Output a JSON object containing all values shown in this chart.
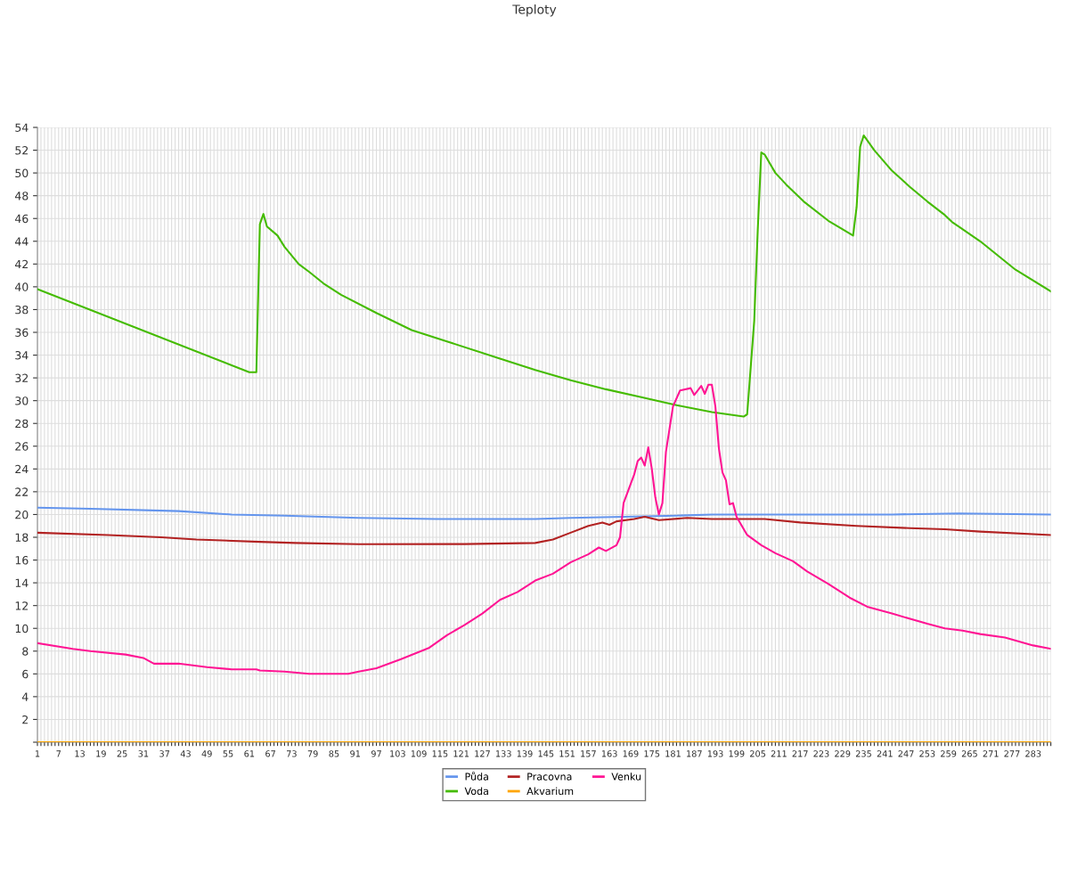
{
  "chart_data": {
    "type": "line",
    "title": "Teploty",
    "xlim": [
      1,
      288
    ],
    "ylim": [
      0,
      54
    ],
    "yticks": [
      {
        "value": 0,
        "label": null
      },
      2,
      4,
      6,
      8,
      10,
      12,
      14,
      16,
      18,
      20,
      22,
      24,
      26,
      28,
      30,
      32,
      34,
      36,
      38,
      40,
      42,
      44,
      46,
      48,
      50,
      52,
      54
    ],
    "xticks": [
      1,
      {
        "value": 2,
        "label": null
      },
      {
        "value": 3,
        "label": null
      },
      {
        "value": 4,
        "label": null
      },
      {
        "value": 5,
        "label": null
      },
      {
        "value": 6,
        "label": null
      },
      7,
      {
        "value": 8,
        "label": null
      },
      {
        "value": 9,
        "label": null
      },
      {
        "value": 10,
        "label": null
      },
      {
        "value": 11,
        "label": null
      },
      {
        "value": 12,
        "label": null
      },
      13,
      {
        "value": 14,
        "label": null
      },
      {
        "value": 15,
        "label": null
      },
      {
        "value": 16,
        "label": null
      },
      {
        "value": 17,
        "label": null
      },
      {
        "value": 18,
        "label": null
      },
      19,
      {
        "value": 20,
        "label": null
      },
      {
        "value": 21,
        "label": null
      },
      {
        "value": 22,
        "label": null
      },
      {
        "value": 23,
        "label": null
      },
      {
        "value": 24,
        "label": null
      },
      25,
      {
        "value": 26,
        "label": null
      },
      {
        "value": 27,
        "label": null
      },
      {
        "value": 28,
        "label": null
      },
      {
        "value": 29,
        "label": null
      },
      {
        "value": 30,
        "label": null
      },
      31,
      {
        "value": 32,
        "label": null
      },
      {
        "value": 33,
        "label": null
      },
      {
        "value": 34,
        "label": null
      },
      {
        "value": 35,
        "label": null
      },
      {
        "value": 36,
        "label": null
      },
      37,
      {
        "value": 38,
        "label": null
      },
      {
        "value": 39,
        "label": null
      },
      {
        "value": 40,
        "label": null
      },
      {
        "value": 41,
        "label": null
      },
      {
        "value": 42,
        "label": null
      },
      43,
      {
        "value": 44,
        "label": null
      },
      {
        "value": 45,
        "label": null
      },
      {
        "value": 46,
        "label": null
      },
      {
        "value": 47,
        "label": null
      },
      {
        "value": 48,
        "label": null
      },
      49,
      {
        "value": 50,
        "label": null
      },
      {
        "value": 51,
        "label": null
      },
      {
        "value": 52,
        "label": null
      },
      {
        "value": 53,
        "label": null
      },
      {
        "value": 54,
        "label": null
      },
      55,
      {
        "value": 56,
        "label": null
      },
      {
        "value": 57,
        "label": null
      },
      {
        "value": 58,
        "label": null
      },
      {
        "value": 59,
        "label": null
      },
      {
        "value": 60,
        "label": null
      },
      61,
      {
        "value": 62,
        "label": null
      },
      {
        "value": 63,
        "label": null
      },
      {
        "value": 64,
        "label": null
      },
      {
        "value": 65,
        "label": null
      },
      {
        "value": 66,
        "label": null
      },
      67,
      {
        "value": 68,
        "label": null
      },
      {
        "value": 69,
        "label": null
      },
      {
        "value": 70,
        "label": null
      },
      {
        "value": 71,
        "label": null
      },
      {
        "value": 72,
        "label": null
      },
      73,
      {
        "value": 74,
        "label": null
      },
      {
        "value": 75,
        "label": null
      },
      {
        "value": 76,
        "label": null
      },
      {
        "value": 77,
        "label": null
      },
      {
        "value": 78,
        "label": null
      },
      79,
      {
        "value": 80,
        "label": null
      },
      {
        "value": 81,
        "label": null
      },
      {
        "value": 82,
        "label": null
      },
      {
        "value": 83,
        "label": null
      },
      {
        "value": 84,
        "label": null
      },
      85,
      {
        "value": 86,
        "label": null
      },
      {
        "value": 87,
        "label": null
      },
      {
        "value": 88,
        "label": null
      },
      {
        "value": 89,
        "label": null
      },
      {
        "value": 90,
        "label": null
      },
      91,
      {
        "value": 92,
        "label": null
      },
      {
        "value": 93,
        "label": null
      },
      {
        "value": 94,
        "label": null
      },
      {
        "value": 95,
        "label": null
      },
      {
        "value": 96,
        "label": null
      },
      97,
      {
        "value": 98,
        "label": null
      },
      {
        "value": 99,
        "label": null
      },
      {
        "value": 100,
        "label": null
      },
      {
        "value": 101,
        "label": null
      },
      {
        "value": 102,
        "label": null
      },
      103,
      {
        "value": 104,
        "label": null
      },
      {
        "value": 105,
        "label": null
      },
      {
        "value": 106,
        "label": null
      },
      {
        "value": 107,
        "label": null
      },
      {
        "value": 108,
        "label": null
      },
      109,
      {
        "value": 110,
        "label": null
      },
      {
        "value": 111,
        "label": null
      },
      {
        "value": 112,
        "label": null
      },
      {
        "value": 113,
        "label": null
      },
      {
        "value": 114,
        "label": null
      },
      115,
      {
        "value": 116,
        "label": null
      },
      {
        "value": 117,
        "label": null
      },
      {
        "value": 118,
        "label": null
      },
      {
        "value": 119,
        "label": null
      },
      {
        "value": 120,
        "label": null
      },
      121,
      {
        "value": 122,
        "label": null
      },
      {
        "value": 123,
        "label": null
      },
      {
        "value": 124,
        "label": null
      },
      {
        "value": 125,
        "label": null
      },
      {
        "value": 126,
        "label": null
      },
      127,
      {
        "value": 128,
        "label": null
      },
      {
        "value": 129,
        "label": null
      },
      {
        "value": 130,
        "label": null
      },
      {
        "value": 131,
        "label": null
      },
      {
        "value": 132,
        "label": null
      },
      133,
      {
        "value": 134,
        "label": null
      },
      {
        "value": 135,
        "label": null
      },
      {
        "value": 136,
        "label": null
      },
      {
        "value": 137,
        "label": null
      },
      {
        "value": 138,
        "label": null
      },
      139,
      {
        "value": 140,
        "label": null
      },
      {
        "value": 141,
        "label": null
      },
      {
        "value": 142,
        "label": null
      },
      {
        "value": 143,
        "label": null
      },
      {
        "value": 144,
        "label": null
      },
      145,
      {
        "value": 146,
        "label": null
      },
      {
        "value": 147,
        "label": null
      },
      {
        "value": 148,
        "label": null
      },
      {
        "value": 149,
        "label": null
      },
      {
        "value": 150,
        "label": null
      },
      151,
      {
        "value": 152,
        "label": null
      },
      {
        "value": 153,
        "label": null
      },
      {
        "value": 154,
        "label": null
      },
      {
        "value": 155,
        "label": null
      },
      {
        "value": 156,
        "label": null
      },
      157,
      {
        "value": 158,
        "label": null
      },
      {
        "value": 159,
        "label": null
      },
      {
        "value": 160,
        "label": null
      },
      {
        "value": 161,
        "label": null
      },
      {
        "value": 162,
        "label": null
      },
      163,
      {
        "value": 164,
        "label": null
      },
      {
        "value": 165,
        "label": null
      },
      {
        "value": 166,
        "label": null
      },
      {
        "value": 167,
        "label": null
      },
      {
        "value": 168,
        "label": null
      },
      169,
      {
        "value": 170,
        "label": null
      },
      {
        "value": 171,
        "label": null
      },
      {
        "value": 172,
        "label": null
      },
      {
        "value": 173,
        "label": null
      },
      {
        "value": 174,
        "label": null
      },
      175,
      {
        "value": 176,
        "label": null
      },
      {
        "value": 177,
        "label": null
      },
      {
        "value": 178,
        "label": null
      },
      {
        "value": 179,
        "label": null
      },
      {
        "value": 180,
        "label": null
      },
      181,
      {
        "value": 182,
        "label": null
      },
      {
        "value": 183,
        "label": null
      },
      {
        "value": 184,
        "label": null
      },
      {
        "value": 185,
        "label": null
      },
      {
        "value": 186,
        "label": null
      },
      187,
      {
        "value": 188,
        "label": null
      },
      {
        "value": 189,
        "label": null
      },
      {
        "value": 190,
        "label": null
      },
      {
        "value": 191,
        "label": null
      },
      {
        "value": 192,
        "label": null
      },
      193,
      {
        "value": 194,
        "label": null
      },
      {
        "value": 195,
        "label": null
      },
      {
        "value": 196,
        "label": null
      },
      {
        "value": 197,
        "label": null
      },
      {
        "value": 198,
        "label": null
      },
      199,
      {
        "value": 200,
        "label": null
      },
      {
        "value": 201,
        "label": null
      },
      {
        "value": 202,
        "label": null
      },
      {
        "value": 203,
        "label": null
      },
      {
        "value": 204,
        "label": null
      },
      205,
      {
        "value": 206,
        "label": null
      },
      {
        "value": 207,
        "label": null
      },
      {
        "value": 208,
        "label": null
      },
      {
        "value": 209,
        "label": null
      },
      {
        "value": 210,
        "label": null
      },
      211,
      {
        "value": 212,
        "label": null
      },
      {
        "value": 213,
        "label": null
      },
      {
        "value": 214,
        "label": null
      },
      {
        "value": 215,
        "label": null
      },
      {
        "value": 216,
        "label": null
      },
      217,
      {
        "value": 218,
        "label": null
      },
      {
        "value": 219,
        "label": null
      },
      {
        "value": 220,
        "label": null
      },
      {
        "value": 221,
        "label": null
      },
      {
        "value": 222,
        "label": null
      },
      223,
      {
        "value": 224,
        "label": null
      },
      {
        "value": 225,
        "label": null
      },
      {
        "value": 226,
        "label": null
      },
      {
        "value": 227,
        "label": null
      },
      {
        "value": 228,
        "label": null
      },
      229,
      {
        "value": 230,
        "label": null
      },
      {
        "value": 231,
        "label": null
      },
      {
        "value": 232,
        "label": null
      },
      {
        "value": 233,
        "label": null
      },
      {
        "value": 234,
        "label": null
      },
      235,
      {
        "value": 236,
        "label": null
      },
      {
        "value": 237,
        "label": null
      },
      {
        "value": 238,
        "label": null
      },
      {
        "value": 239,
        "label": null
      },
      {
        "value": 240,
        "label": null
      },
      241,
      {
        "value": 242,
        "label": null
      },
      {
        "value": 243,
        "label": null
      },
      {
        "value": 244,
        "label": null
      },
      {
        "value": 245,
        "label": null
      },
      {
        "value": 246,
        "label": null
      },
      247,
      {
        "value": 248,
        "label": null
      },
      {
        "value": 249,
        "label": null
      },
      {
        "value": 250,
        "label": null
      },
      {
        "value": 251,
        "label": null
      },
      {
        "value": 252,
        "label": null
      },
      253,
      {
        "value": 254,
        "label": null
      },
      {
        "value": 255,
        "label": null
      },
      {
        "value": 256,
        "label": null
      },
      {
        "value": 257,
        "label": null
      },
      {
        "value": 258,
        "label": null
      },
      259,
      {
        "value": 260,
        "label": null
      },
      {
        "value": 261,
        "label": null
      },
      {
        "value": 262,
        "label": null
      },
      {
        "value": 263,
        "label": null
      },
      {
        "value": 264,
        "label": null
      },
      265,
      {
        "value": 266,
        "label": null
      },
      {
        "value": 267,
        "label": null
      },
      {
        "value": 268,
        "label": null
      },
      {
        "value": 269,
        "label": null
      },
      {
        "value": 270,
        "label": null
      },
      271,
      {
        "value": 272,
        "label": null
      },
      {
        "value": 273,
        "label": null
      },
      {
        "value": 274,
        "label": null
      },
      {
        "value": 275,
        "label": null
      },
      {
        "value": 276,
        "label": null
      },
      277,
      {
        "value": 278,
        "label": null
      },
      {
        "value": 279,
        "label": null
      },
      {
        "value": 280,
        "label": null
      },
      {
        "value": 281,
        "label": null
      },
      {
        "value": 282,
        "label": null
      },
      283,
      {
        "value": 284,
        "label": null
      },
      {
        "value": 285,
        "label": null
      },
      {
        "value": 286,
        "label": null
      },
      {
        "value": 287,
        "label": null
      },
      {
        "value": 288,
        "label": null
      }
    ],
    "grid": true,
    "legend": "bottom",
    "marker": "none",
    "line_style": "solid",
    "series": [
      {
        "name": "Půda",
        "color": "#6495ed",
        "x": [
          1,
          16,
          41,
          56,
          71,
          92,
          114,
          142,
          152,
          167,
          182,
          192,
          243,
          262,
          288
        ],
        "values": [
          20.6,
          20.5,
          20.3,
          20.0,
          19.9,
          19.7,
          19.6,
          19.6,
          19.7,
          19.8,
          19.9,
          20.0,
          20.0,
          20.1,
          20.0
        ]
      },
      {
        "name": "Voda",
        "color": "#44bb00",
        "x": [
          1,
          61,
          63,
          64,
          65,
          66,
          69,
          71,
          75,
          78,
          82,
          87,
          97,
          107,
          117,
          132,
          142,
          152,
          162,
          172,
          182,
          192,
          201,
          202,
          204,
          205,
          206,
          207,
          210,
          213,
          218,
          225,
          232,
          233,
          234,
          235,
          238,
          243,
          248,
          253,
          258,
          260,
          268,
          278,
          288
        ],
        "values": [
          39.8,
          32.5,
          32.5,
          45.5,
          46.4,
          45.3,
          44.5,
          43.5,
          42.0,
          41.3,
          40.3,
          39.3,
          37.7,
          36.2,
          35.2,
          33.7,
          32.7,
          31.8,
          31.0,
          30.3,
          29.6,
          29.0,
          28.6,
          28.8,
          37.0,
          45.0,
          51.8,
          51.6,
          50.0,
          49.0,
          47.5,
          45.8,
          44.5,
          47.0,
          52.3,
          53.3,
          52.0,
          50.2,
          48.8,
          47.5,
          46.3,
          45.7,
          44.0,
          41.5,
          39.6
        ]
      },
      {
        "name": "Pracovna",
        "color": "#b22222",
        "x": [
          1,
          21,
          36,
          46,
          64,
          74,
          92,
          122,
          142,
          147,
          152,
          157,
          161,
          163,
          165,
          170,
          173,
          177,
          185,
          192,
          207,
          217,
          233,
          248,
          258,
          268,
          288
        ],
        "values": [
          18.4,
          18.2,
          18.0,
          17.8,
          17.6,
          17.5,
          17.4,
          17.4,
          17.5,
          17.8,
          18.4,
          19.0,
          19.3,
          19.1,
          19.4,
          19.6,
          19.8,
          19.5,
          19.7,
          19.6,
          19.6,
          19.3,
          19.0,
          18.8,
          18.7,
          18.5,
          18.2
        ]
      },
      {
        "name": "Akvarium",
        "color": "#ffa500",
        "x": [
          1,
          288
        ],
        "values": [
          0,
          0
        ]
      },
      {
        "name": "Venku",
        "color": "#ff1493",
        "x": [
          1,
          11,
          16,
          26,
          31,
          34,
          41,
          49,
          56,
          63,
          64,
          71,
          78,
          89,
          92,
          97,
          104,
          112,
          117,
          122,
          127,
          132,
          137,
          142,
          147,
          152,
          157,
          160,
          162,
          165,
          166,
          167,
          170,
          171,
          172,
          173,
          174,
          175,
          176,
          177,
          178,
          179,
          181,
          183,
          186,
          187,
          189,
          190,
          191,
          192,
          193,
          194,
          195,
          196,
          197,
          198,
          199,
          202,
          206,
          210,
          215,
          219,
          225,
          231,
          236,
          243,
          253,
          258,
          263,
          268,
          275,
          283,
          288
        ],
        "values": [
          8.7,
          8.2,
          8.0,
          7.7,
          7.4,
          6.9,
          6.9,
          6.6,
          6.4,
          6.4,
          6.3,
          6.2,
          6.0,
          6.0,
          6.2,
          6.5,
          7.3,
          8.3,
          9.4,
          10.3,
          11.3,
          12.5,
          13.2,
          14.2,
          14.8,
          15.8,
          16.5,
          17.1,
          16.8,
          17.3,
          18.0,
          21.0,
          23.5,
          24.7,
          25.0,
          24.3,
          25.9,
          24.0,
          21.5,
          20.0,
          21.0,
          25.5,
          29.5,
          30.9,
          31.1,
          30.5,
          31.3,
          30.6,
          31.4,
          31.4,
          29.5,
          25.8,
          23.7,
          23.0,
          20.9,
          21.0,
          19.8,
          18.2,
          17.3,
          16.6,
          15.9,
          15.0,
          13.9,
          12.7,
          11.9,
          11.3,
          10.4,
          10.0,
          9.8,
          9.5,
          9.2,
          8.5,
          8.2
        ]
      }
    ]
  }
}
